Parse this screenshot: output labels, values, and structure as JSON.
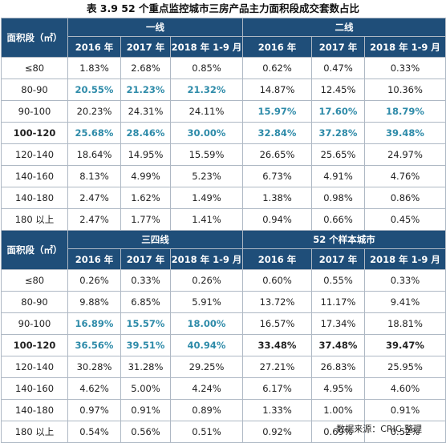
{
  "title": "表 3.9    52 个重点监控城市三房产品主力面积段成交套数占比",
  "source": "数据来源：CRIC 整理",
  "colors": {
    "header_bg": "#1f4e79",
    "highlight": "#2e8ba9"
  },
  "sections": [
    {
      "row_header": "面积段（㎡）",
      "groups": [
        "一线",
        "二线"
      ],
      "periods": [
        "2016 年",
        "2017 年",
        "2018 年 1-9 月",
        "2016 年",
        "2017 年",
        "2018 年 1-9 月"
      ],
      "rows": [
        {
          "label": "≤80",
          "values": [
            "1.83%",
            "2.68%",
            "0.85%",
            "0.62%",
            "0.47%",
            "0.33%"
          ]
        },
        {
          "label": "80-90",
          "values": [
            "20.55%",
            "21.23%",
            "21.32%",
            "14.87%",
            "12.45%",
            "10.36%"
          ]
        },
        {
          "label": "90-100",
          "values": [
            "20.23%",
            "24.31%",
            "24.11%",
            "15.97%",
            "17.60%",
            "18.79%"
          ]
        },
        {
          "label": "100-120",
          "values": [
            "25.68%",
            "28.46%",
            "30.00%",
            "32.84%",
            "37.28%",
            "39.48%"
          ]
        },
        {
          "label": "120-140",
          "values": [
            "18.64%",
            "14.95%",
            "15.59%",
            "26.65%",
            "25.65%",
            "24.97%"
          ]
        },
        {
          "label": "140-160",
          "values": [
            "8.13%",
            "4.99%",
            "5.23%",
            "6.73%",
            "4.91%",
            "4.76%"
          ]
        },
        {
          "label": "140-180",
          "values": [
            "2.47%",
            "1.62%",
            "1.49%",
            "1.38%",
            "0.98%",
            "0.86%"
          ]
        },
        {
          "label": "180 以上",
          "values": [
            "2.47%",
            "1.77%",
            "1.41%",
            "0.94%",
            "0.66%",
            "0.45%"
          ]
        }
      ]
    },
    {
      "row_header": "面积段（㎡）",
      "groups": [
        "三四线",
        "52 个样本城市"
      ],
      "periods": [
        "2016 年",
        "2017 年",
        "2018 年 1-9 月",
        "2016 年",
        "2017 年",
        "2018 年 1-9 月"
      ],
      "rows": [
        {
          "label": "≤80",
          "values": [
            "0.26%",
            "0.33%",
            "0.26%",
            "0.60%",
            "0.55%",
            "0.33%"
          ]
        },
        {
          "label": "80-90",
          "values": [
            "9.88%",
            "6.85%",
            "5.91%",
            "13.72%",
            "11.17%",
            "9.41%"
          ]
        },
        {
          "label": "90-100",
          "values": [
            "16.89%",
            "15.57%",
            "18.00%",
            "16.57%",
            "17.34%",
            "18.81%"
          ]
        },
        {
          "label": "100-120",
          "values": [
            "36.56%",
            "39.51%",
            "40.94%",
            "33.48%",
            "37.48%",
            "39.47%"
          ]
        },
        {
          "label": "120-140",
          "values": [
            "30.28%",
            "31.28%",
            "29.25%",
            "27.21%",
            "26.83%",
            "25.95%"
          ]
        },
        {
          "label": "140-160",
          "values": [
            "4.62%",
            "5.00%",
            "4.24%",
            "6.17%",
            "4.95%",
            "4.60%"
          ]
        },
        {
          "label": "140-180",
          "values": [
            "0.97%",
            "0.91%",
            "0.89%",
            "1.33%",
            "1.00%",
            "0.91%"
          ]
        },
        {
          "label": "180 以上",
          "values": [
            "0.54%",
            "0.56%",
            "0.51%",
            "0.92%",
            "0.69%",
            "0.52%"
          ]
        }
      ]
    }
  ]
}
